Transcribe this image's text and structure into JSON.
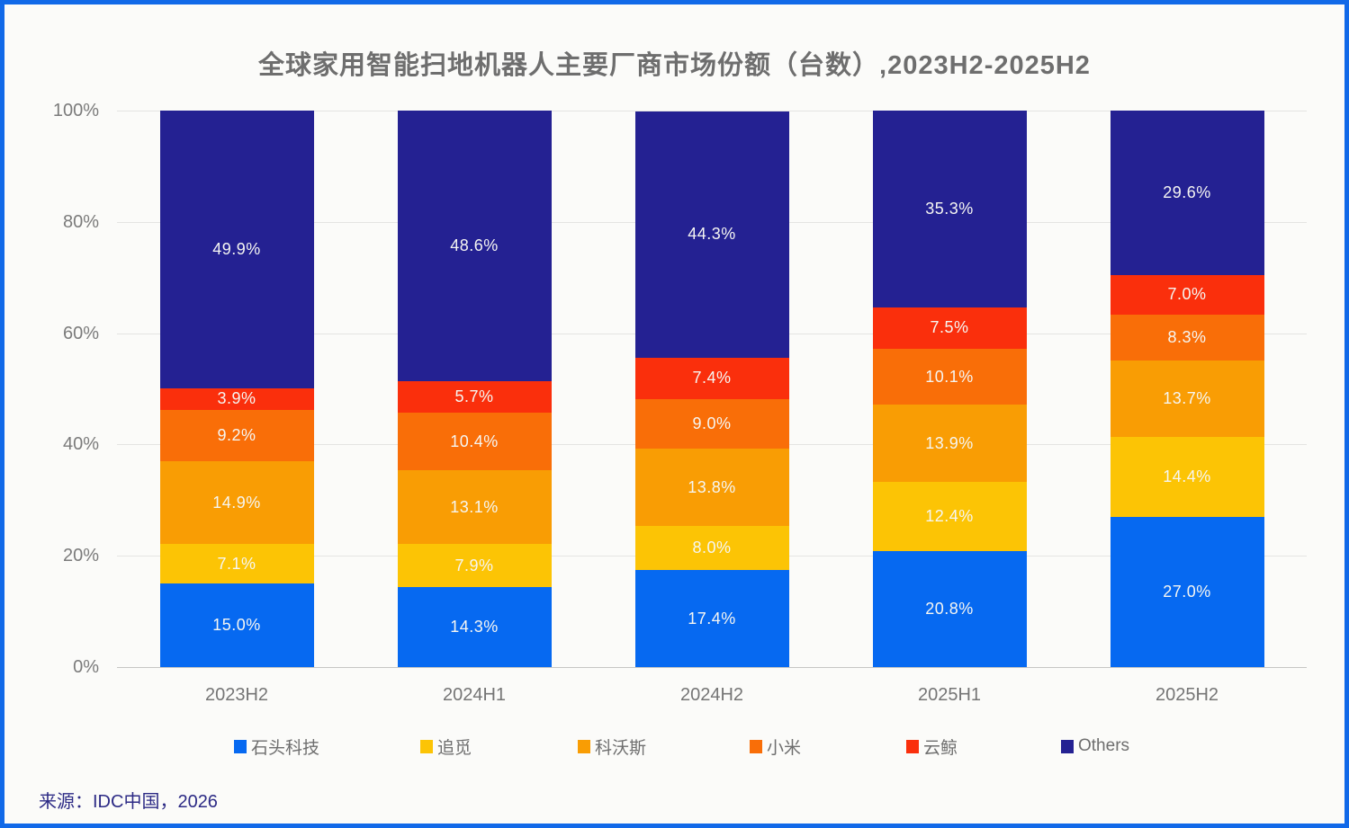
{
  "frame": {
    "border_color": "#1169e8",
    "background_color": "#fbfbf9"
  },
  "chart_data": {
    "type": "bar",
    "stacked": true,
    "title": "全球家用智能扫地机器人主要厂商市场份额（台数）,2023H2-2025H2",
    "categories": [
      "2023H2",
      "2024H1",
      "2024H2",
      "2025H1",
      "2025H2"
    ],
    "series": [
      {
        "name": "石头科技",
        "color": "#0669f1",
        "values": [
          15.0,
          14.3,
          17.4,
          20.8,
          27.0
        ]
      },
      {
        "name": "追觅",
        "color": "#fcc405",
        "values": [
          7.1,
          7.9,
          8.0,
          12.4,
          14.4
        ]
      },
      {
        "name": "科沃斯",
        "color": "#f99d04",
        "values": [
          14.9,
          13.1,
          13.8,
          13.9,
          13.7
        ]
      },
      {
        "name": "小米",
        "color": "#f96e08",
        "values": [
          9.2,
          10.4,
          9.0,
          10.1,
          8.3
        ]
      },
      {
        "name": "云鲸",
        "color": "#fa2f0c",
        "values": [
          3.9,
          5.7,
          7.4,
          7.5,
          7.0
        ]
      },
      {
        "name": "Others",
        "color": "#242192",
        "values": [
          49.9,
          48.6,
          44.3,
          35.3,
          29.6
        ]
      }
    ],
    "data_labels": {
      "2023H2": [
        "15.0%",
        "7.1%",
        "14.9%",
        "9.2%",
        "3.9%",
        "49.9%"
      ],
      "2024H1": [
        "14.3%",
        "7.9%",
        "13.1%",
        "10.4%",
        "5.7%",
        "48.6%"
      ],
      "2024H2": [
        "17.4%",
        "8.0%",
        "13.8%",
        "9.0%",
        "7.4%",
        "44.3%"
      ],
      "2025H1": [
        "20.8%",
        "12.4%",
        "13.9%",
        "10.1%",
        "7.5%",
        "35.3%"
      ],
      "2025H2": [
        "27.0%",
        "14.4%",
        "13.7%",
        "8.3%",
        "7.0%",
        "29.6%"
      ]
    },
    "y_ticks": [
      "0%",
      "20%",
      "40%",
      "60%",
      "80%",
      "100%"
    ],
    "ylim": [
      0,
      100
    ],
    "grid": "horizontal",
    "legend_position": "bottom"
  },
  "source": "来源：IDC中国，2026"
}
